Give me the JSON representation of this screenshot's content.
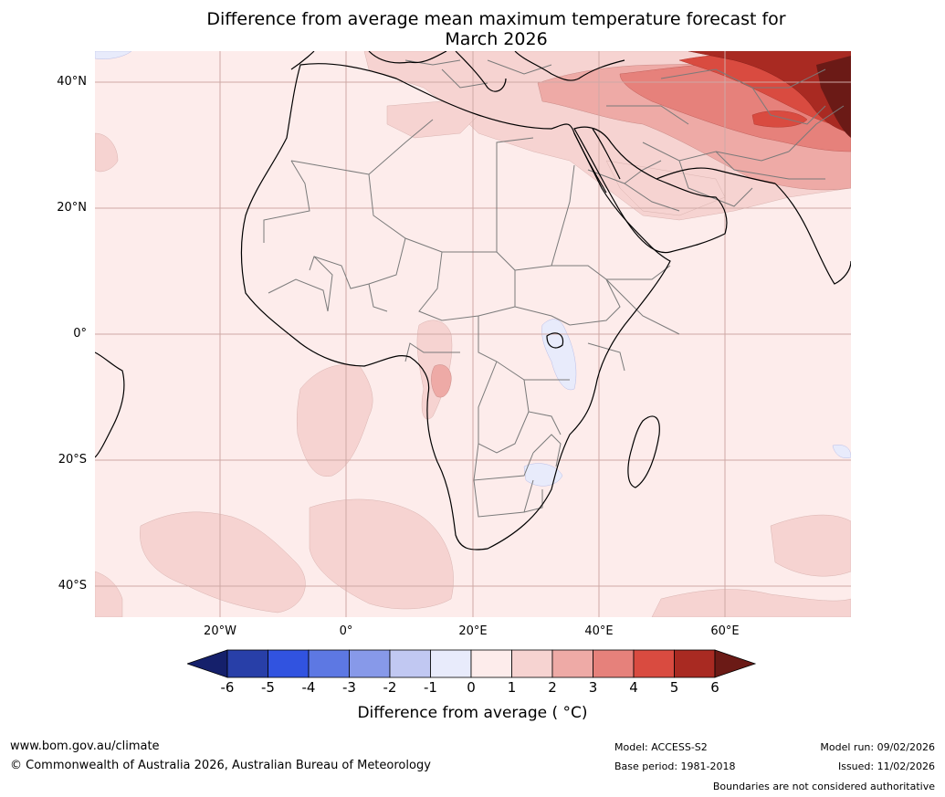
{
  "title": {
    "line1": "Difference from average mean maximum temperature forecast for",
    "line2": "March 2026"
  },
  "map": {
    "lat_labels": [
      "40°N",
      "20°N",
      "0°",
      "20°S",
      "40°S"
    ],
    "lon_labels": [
      "20°W",
      "0°",
      "20°E",
      "40°E",
      "60°E"
    ]
  },
  "colorbar": {
    "ticks": [
      "-6",
      "-5",
      "-4",
      "-3",
      "-2",
      "-1",
      "0",
      "1",
      "2",
      "3",
      "4",
      "5",
      "6"
    ],
    "colors": [
      "#15206b",
      "#283fa8",
      "#3153e0",
      "#5d78e3",
      "#8799e9",
      "#c1c8f2",
      "#e8ebfb",
      "#fdeceb",
      "#f6d3d1",
      "#eeaaa6",
      "#e6817b",
      "#d94b40",
      "#a92a22",
      "#6b1a16"
    ],
    "label": "Difference from average ( °C)"
  },
  "footer": {
    "url": "www.bom.gov.au/climate",
    "copyright": "© Commonwealth of Australia 2026, Australian Bureau of Meteorology",
    "model": "Model: ACCESS-S2",
    "base_period": "Base period: 1981-2018",
    "model_run": "Model run: 09/02/2026",
    "issued": "Issued: 11/02/2026",
    "disclaimer": "Boundaries are not considered authoritative"
  }
}
